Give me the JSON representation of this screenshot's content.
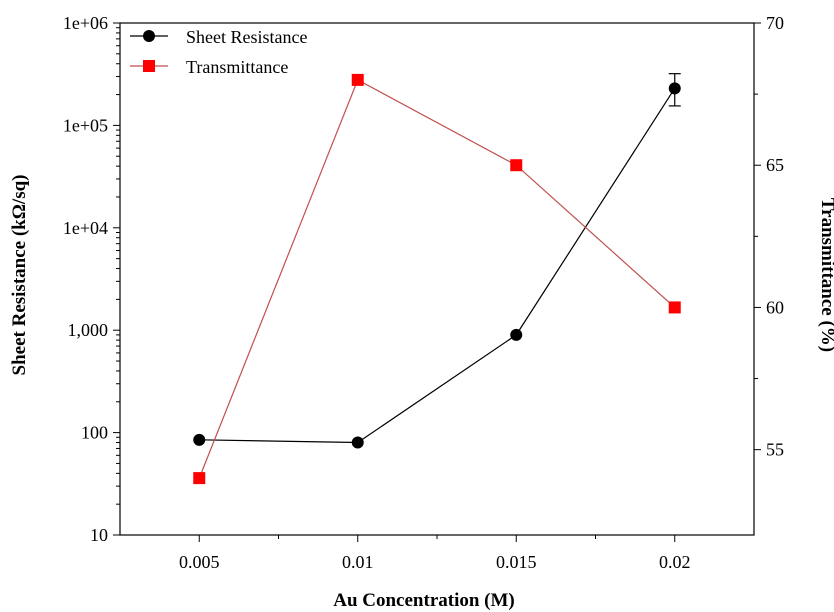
{
  "chart_data": {
    "type": "line",
    "title": "",
    "xlabel": "Au Concentration (M)",
    "ylabel_left": "Sheet Resistance (kΩ/sq)",
    "ylabel_right": "Transmittance (%)",
    "x": [
      0.005,
      0.01,
      0.015,
      0.02
    ],
    "x_ticks": [
      "0.005",
      "0.01",
      "0.015",
      "0.02"
    ],
    "xlim": [
      0.0025,
      0.0225
    ],
    "y_left_scale": "log",
    "y_left_lim": [
      10,
      1000000
    ],
    "y_left_ticks": [
      "10",
      "100",
      "1,000",
      "1e+04",
      "1e+05",
      "1e+06"
    ],
    "y_right_lim": [
      52,
      70
    ],
    "y_right_ticks": [
      "55",
      "60",
      "65",
      "70"
    ],
    "grid": false,
    "legend_position": "top-left",
    "series": [
      {
        "name": "Sheet Resistance",
        "axis": "left",
        "color": "#000000",
        "marker": "circle",
        "values": [
          85,
          80,
          900,
          230000
        ],
        "error_high": [
          null,
          null,
          null,
          320000
        ],
        "error_low": [
          null,
          null,
          null,
          155000
        ]
      },
      {
        "name": "Transmittance",
        "axis": "right",
        "color": "#ff0000",
        "line_color": "#c0504d",
        "marker": "square",
        "values": [
          54,
          68,
          65,
          60
        ]
      }
    ]
  }
}
